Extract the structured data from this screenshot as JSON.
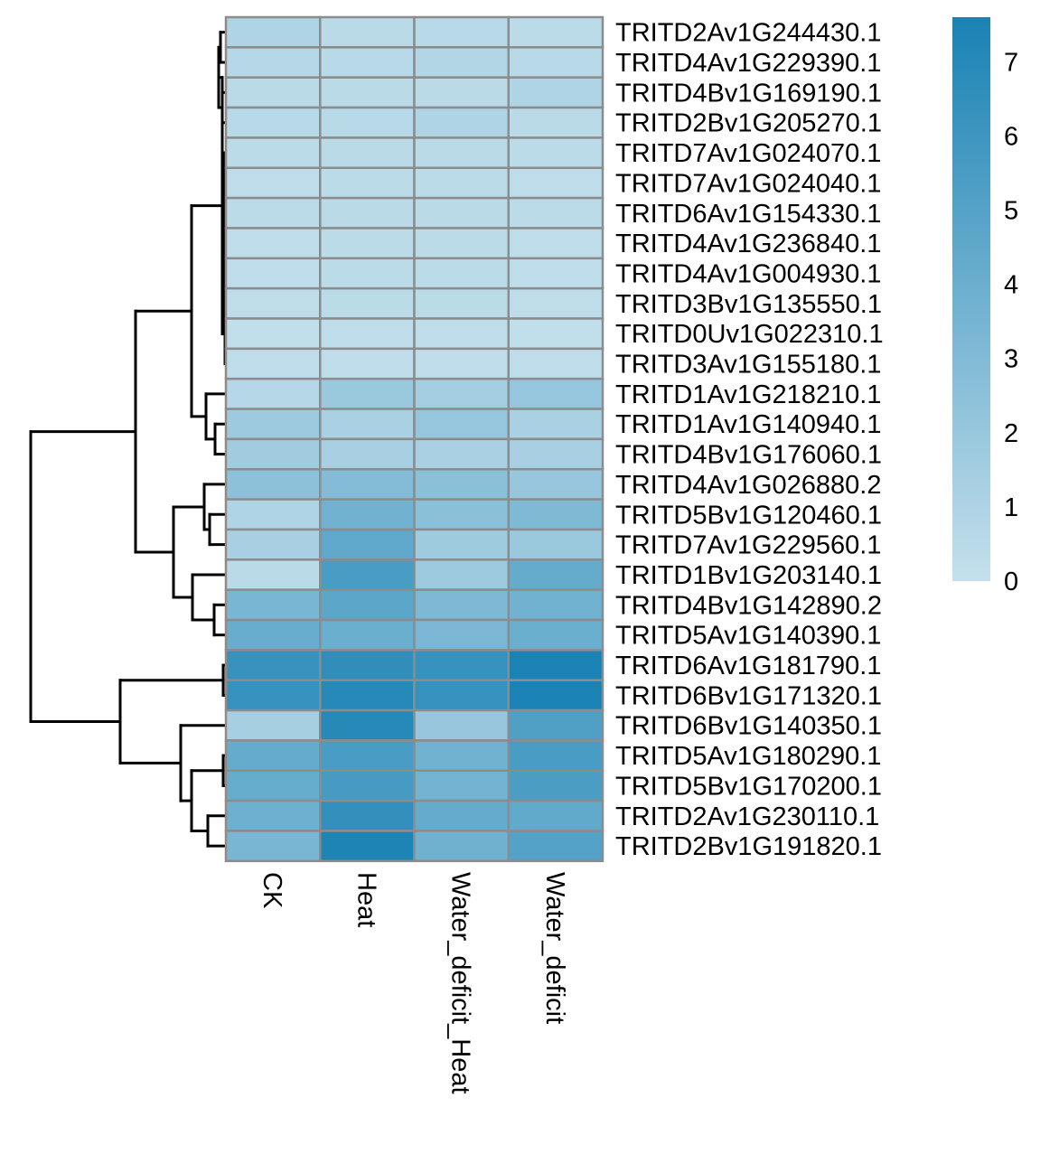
{
  "chart_data": {
    "type": "heatmap",
    "columns": [
      "CK",
      "Heat",
      "Water_deficit_Heat",
      "Water_deficit"
    ],
    "rows": [
      "TRITD2Av1G244430.1",
      "TRITD4Av1G229390.1",
      "TRITD4Bv1G169190.1",
      "TRITD2Bv1G205270.1",
      "TRITD7Av1G024070.1",
      "TRITD7Av1G024040.1",
      "TRITD6Av1G154330.1",
      "TRITD4Av1G236840.1",
      "TRITD4Av1G004930.1",
      "TRITD3Bv1G135550.1",
      "TRITD0Uv1G022310.1",
      "TRITD3Av1G155180.1",
      "TRITD1Av1G218210.1",
      "TRITD1Av1G140940.1",
      "TRITD4Bv1G176060.1",
      "TRITD4Av1G026880.2",
      "TRITD5Bv1G120460.1",
      "TRITD7Av1G229560.1",
      "TRITD1Bv1G203140.1",
      "TRITD4Bv1G142890.2",
      "TRITD5Av1G140390.1",
      "TRITD6Av1G181790.1",
      "TRITD6Bv1G171320.1",
      "TRITD6Bv1G140350.1",
      "TRITD5Av1G180290.1",
      "TRITD5Bv1G170200.1",
      "TRITD2Av1G230110.1",
      "TRITD2Bv1G191820.1"
    ],
    "values": [
      [
        1.0,
        0.5,
        0.6,
        0.4
      ],
      [
        0.7,
        0.6,
        0.8,
        0.6
      ],
      [
        0.5,
        0.5,
        0.5,
        1.0
      ],
      [
        0.6,
        0.6,
        1.0,
        0.5
      ],
      [
        0.4,
        0.5,
        0.5,
        0.4
      ],
      [
        0.3,
        0.4,
        0.4,
        0.3
      ],
      [
        0.4,
        0.5,
        0.5,
        0.4
      ],
      [
        0.3,
        0.4,
        0.4,
        0.3
      ],
      [
        0.3,
        0.4,
        0.4,
        0.3
      ],
      [
        0.3,
        0.4,
        0.4,
        0.3
      ],
      [
        0.2,
        0.3,
        0.3,
        0.2
      ],
      [
        0.3,
        0.3,
        0.3,
        0.3
      ],
      [
        0.7,
        1.9,
        1.5,
        2.1
      ],
      [
        1.8,
        1.2,
        2.1,
        1.2
      ],
      [
        1.6,
        1.3,
        1.2,
        1.3
      ],
      [
        2.5,
        2.9,
        2.6,
        2.0
      ],
      [
        1.0,
        3.7,
        2.6,
        3.1
      ],
      [
        1.3,
        4.5,
        1.7,
        1.9
      ],
      [
        0.5,
        5.5,
        1.8,
        4.3
      ],
      [
        3.4,
        4.7,
        3.2,
        3.7
      ],
      [
        4.1,
        4.0,
        3.3,
        4.0
      ],
      [
        6.3,
        6.6,
        6.4,
        7.6
      ],
      [
        6.4,
        7.0,
        6.4,
        7.6
      ],
      [
        1.4,
        7.0,
        2.0,
        5.2
      ],
      [
        4.3,
        5.5,
        3.7,
        5.5
      ],
      [
        4.2,
        5.6,
        3.6,
        5.4
      ],
      [
        3.9,
        6.5,
        4.3,
        4.4
      ],
      [
        3.4,
        7.4,
        3.8,
        5.0
      ]
    ],
    "color_scale": {
      "min": 0,
      "max": 7.6,
      "low_color": "#c5e0ec",
      "high_color": "#1a82b4",
      "ticks": [
        "0",
        "1",
        "2",
        "3",
        "4",
        "5",
        "6",
        "7"
      ],
      "tick_values": [
        0,
        1,
        2,
        3,
        4,
        5,
        6,
        7
      ]
    },
    "cell_border_color": "#8c8c8c",
    "row_dendrogram": true,
    "legend_placement": "top-right"
  }
}
